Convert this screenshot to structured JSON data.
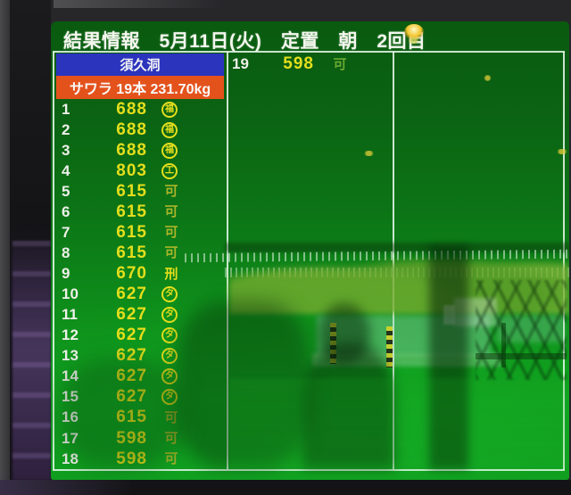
{
  "header": {
    "title": "結果情報　5月11日(火)　定置　朝　2回目"
  },
  "panel": {
    "location": "須久洞",
    "summary": "サワラ 19本 231.70kg"
  },
  "rows": [
    {
      "no": "1",
      "value": "688",
      "mark": "福",
      "circled": true,
      "mark_color": "yellow"
    },
    {
      "no": "2",
      "value": "688",
      "mark": "福",
      "circled": true,
      "mark_color": "yellow"
    },
    {
      "no": "3",
      "value": "688",
      "mark": "福",
      "circled": true,
      "mark_color": "yellow"
    },
    {
      "no": "4",
      "value": "803",
      "mark": "工",
      "circled": true,
      "mark_color": "yellow"
    },
    {
      "no": "5",
      "value": "615",
      "mark": "可",
      "circled": false,
      "mark_color": "olive"
    },
    {
      "no": "6",
      "value": "615",
      "mark": "可",
      "circled": false,
      "mark_color": "olive"
    },
    {
      "no": "7",
      "value": "615",
      "mark": "可",
      "circled": false,
      "mark_color": "olive"
    },
    {
      "no": "8",
      "value": "615",
      "mark": "可",
      "circled": false,
      "mark_color": "olive"
    },
    {
      "no": "9",
      "value": "670",
      "mark": "刑",
      "circled": false,
      "mark_color": "yellow"
    },
    {
      "no": "10",
      "value": "627",
      "mark": "タ",
      "circled": true,
      "mark_color": "yellow"
    },
    {
      "no": "11",
      "value": "627",
      "mark": "タ",
      "circled": true,
      "mark_color": "yellow"
    },
    {
      "no": "12",
      "value": "627",
      "mark": "タ",
      "circled": true,
      "mark_color": "yellow"
    },
    {
      "no": "13",
      "value": "627",
      "mark": "タ",
      "circled": true,
      "mark_color": "yellow"
    },
    {
      "no": "14",
      "value": "627",
      "mark": "タ",
      "circled": true,
      "mark_color": "yellow"
    },
    {
      "no": "15",
      "value": "627",
      "mark": "タ",
      "circled": true,
      "mark_color": "yellow"
    },
    {
      "no": "16",
      "value": "615",
      "mark": "可",
      "circled": false,
      "mark_color": "olive"
    },
    {
      "no": "17",
      "value": "598",
      "mark": "可",
      "circled": false,
      "mark_color": "olive"
    },
    {
      "no": "18",
      "value": "598",
      "mark": "可",
      "circled": false,
      "mark_color": "olive"
    }
  ],
  "overflow_row": {
    "no": "19",
    "value": "598",
    "mark": "可",
    "circled": false,
    "mark_color": "green"
  },
  "colors": {
    "value-yellow": "#e4de1c",
    "mark-olive": "#a9b42a",
    "mark-green": "#6aa832",
    "panel-blue": "#2a34bd",
    "panel-orange": "#e4521c",
    "screen-green": "#0e8c1a",
    "text-white": "#f4f4f4"
  }
}
